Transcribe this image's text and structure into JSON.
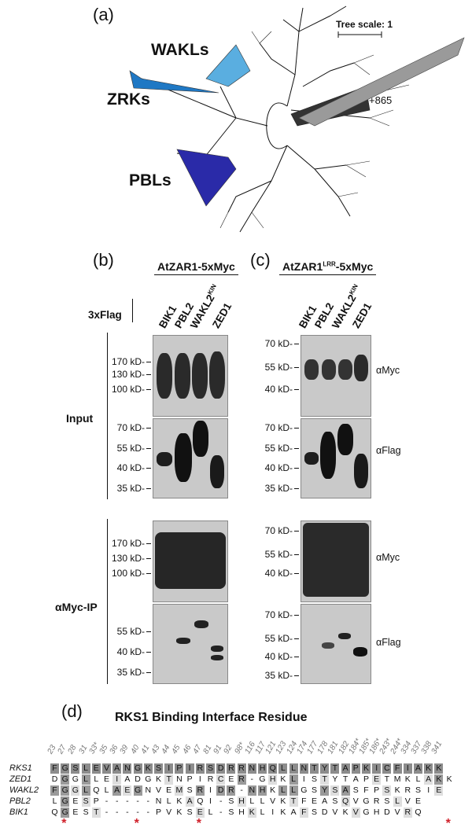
{
  "panels": {
    "a": "(a)",
    "b": "(b)",
    "c": "(c)",
    "d": "(d)"
  },
  "tree": {
    "scale_label": "Tree scale: 1",
    "clades": [
      {
        "name": "WAKLs",
        "color": "#5aaee0"
      },
      {
        "name": "ZRKs",
        "color": "#1f78c4"
      },
      {
        "name": "PBLs",
        "color": "#2a2aa8"
      }
    ],
    "collapsed_count": "+865"
  },
  "blots": {
    "construct_b": "AtZAR1-5xMyc",
    "construct_c_main": "AtZAR1",
    "construct_c_sup": "LRR",
    "construct_c_tail": "-5xMyc",
    "flag_tag": "3xFlag",
    "lanes": [
      "BIK1",
      "PBL2",
      "WAKL2",
      "ZED1"
    ],
    "lane_sup": "KIN",
    "input_label": "Input",
    "ip_label": "αMyc-IP",
    "mw_top": [
      "170 kD-",
      "130 kD-",
      "100 kD-"
    ],
    "mw_bottom": [
      "70 kD-",
      "55 kD-",
      "40 kD-",
      "35 kD-"
    ],
    "mw_c_top": [
      "70 kD-",
      "55 kD-",
      "40 kD-"
    ],
    "mw_c_bottom": [
      "70 kD-",
      "55 kD-",
      "40 kD-",
      "35 kD-"
    ],
    "ab_myc": "αMyc",
    "ab_flag": "αFlag"
  },
  "alignment": {
    "title": "RKS1 Binding Interface Residue",
    "positions": [
      "23",
      "27",
      "28",
      "31",
      "33*",
      "35",
      "36",
      "39",
      "40",
      "41",
      "43",
      "44",
      "45",
      "46",
      "47",
      "81",
      "91",
      "92",
      "98*",
      "116",
      "117",
      "121",
      "123",
      "124",
      "174",
      "177",
      "178",
      "181",
      "182",
      "184*",
      "185*",
      "186*",
      "243*",
      "244*",
      "334",
      "337",
      "338",
      "341"
    ],
    "rows": [
      {
        "name": "RKS1",
        "seq": "FGSLEVANGKSIPIRSDRRNHQLLNTYTAPKICFIAKK"
      },
      {
        "name": "ZED1",
        "seq": "DGGLLEIADGKTNPIRCER-GHKLISTYTAPETMKLAKK"
      },
      {
        "name": "WAKL2",
        "seq": "FGGLQLAEGNVEMSRIDR-NHKLLGSYSASFPSKRSIE"
      },
      {
        "name": "PBL2",
        "seq": "LGESP-----NLKAQI-SHLLVKTFEASQVGRSLVE"
      },
      {
        "name": "BIK1",
        "seq": "QGEST-----PVKSEL-SHKLIKAFSDVKVGHDVRQ"
      }
    ],
    "star": "*"
  }
}
